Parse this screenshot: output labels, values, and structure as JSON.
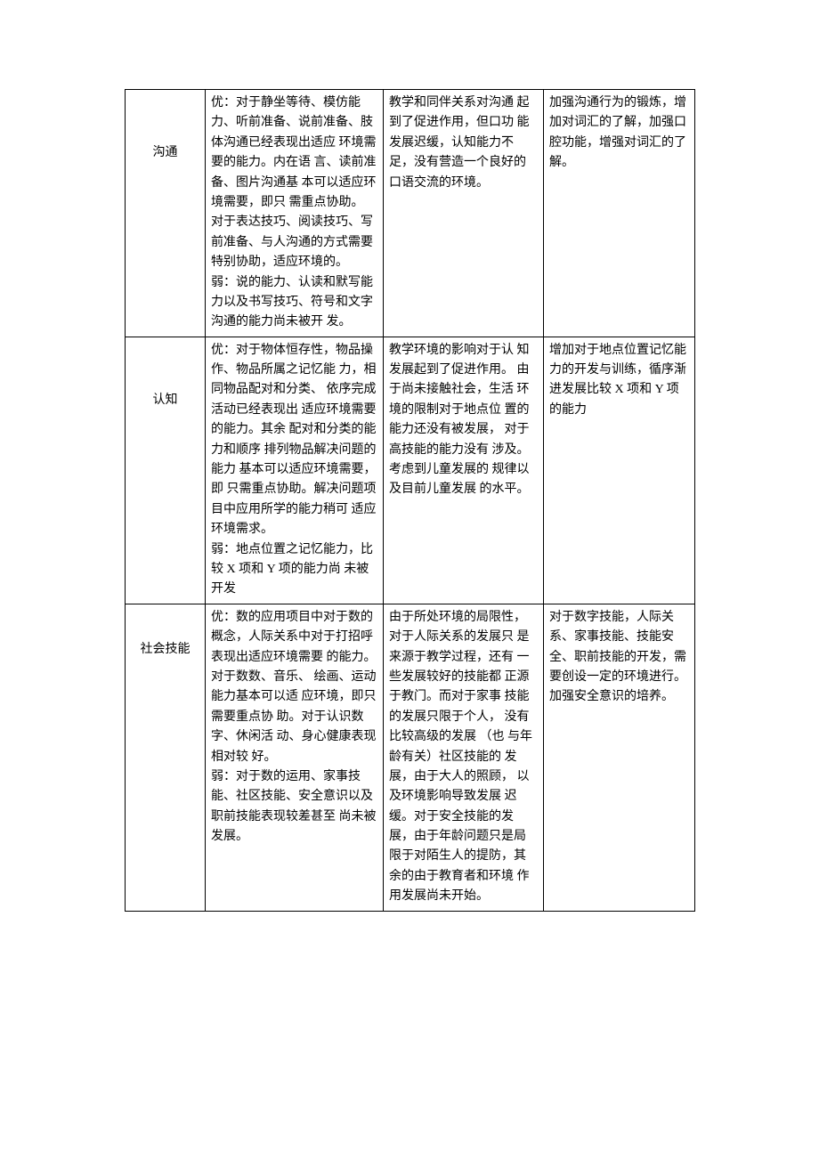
{
  "table": {
    "rows": [
      {
        "category": "沟通",
        "col2": "优：对于静坐等待、模仿能力、听前准备、说前准备、肢体沟通已经表现出适应 环境需要的能力。内在语 言、读前准备、图片沟通基 本可以适应环境需要，即只 需重点协助。\n对于表达技巧、阅读技巧、写前准备、与人沟通的方式需要特别协助，适应环境的。\n弱：说的能力、认读和默写能力以及书写技巧、符号和文字沟通的能力尚未被开 发。",
        "col3": "教学和同伴关系对沟通 起到了促进作用，但口功 能发展迟缓，认知能力不 足，没有营造一个良好的 口语交流的环境。",
        "col4": "加强沟通行为的锻炼，增加对词汇的了解，加强口腔功能，增强对词汇的了解。"
      },
      {
        "category": "认知",
        "col2": "优：对于物体恒存性，物品操作、物品所属之记忆能 力，相同物品配对和分类、 依序完成活动已经表现出 适应环境需要的能力。其余 配对和分类的能力和顺序 排列物品解决问题的能力 基本可以适应环境需要，即 只需重点协助。解决问题项 目中应用所学的能力稍可 适应环境需求。\n弱：地点位置之记忆能力，比较 X 项和 Y 项的能力尚 未被开发",
        "col3": "教学环境的影响对于认 知发展起到了促进作用。 由于尚未接触社会，生活 环境的限制对于地点位 置的能力还没有被发展， 对于高技能的能力没有 涉及。考虑到儿童发展的 规律以及目前儿童发展 的水平。",
        "col4": "增加对于地点位置记忆能力的开发与训练，循序渐进发展比较 X 项和 Y 项的能力"
      },
      {
        "category": "社会技能",
        "col2": "优：数的应用项目中对于数的概念，人际关系中对于打招呼表现出适应环境需要 的能力。对于数数、音乐、 绘画、运动能力基本可以适 应环境，即只需要重点协 助。对于认识数字、休闲活 动、身心健康表现相对较 好。\n弱：对于数的运用、家事技能、社区技能、安全意识以及职前技能表现较差甚至 尚未被发展。",
        "col3": "由于所处环境的局限性，对于人际关系的发展只 是来源于教学过程，还有 一些发展较好的技能都 正源于教门。而对于家事 技能的发展只限于个人， 没有比较高级的发展 （也 与年龄有关）社区技能的 发展，由于大人的照顾， 以及环境影响导致发展 迟缓。对于安全技能的发 展，由于年龄问题只是局 限于对陌生人的提防，其 余的由于教育者和环境 作用发展尚未开始。",
        "col4": "对于数字技能，人际关系、家事技能、技能安全、职前技能的开发，需要创设一定的环境进行。加强安全意识的培养。"
      }
    ]
  }
}
